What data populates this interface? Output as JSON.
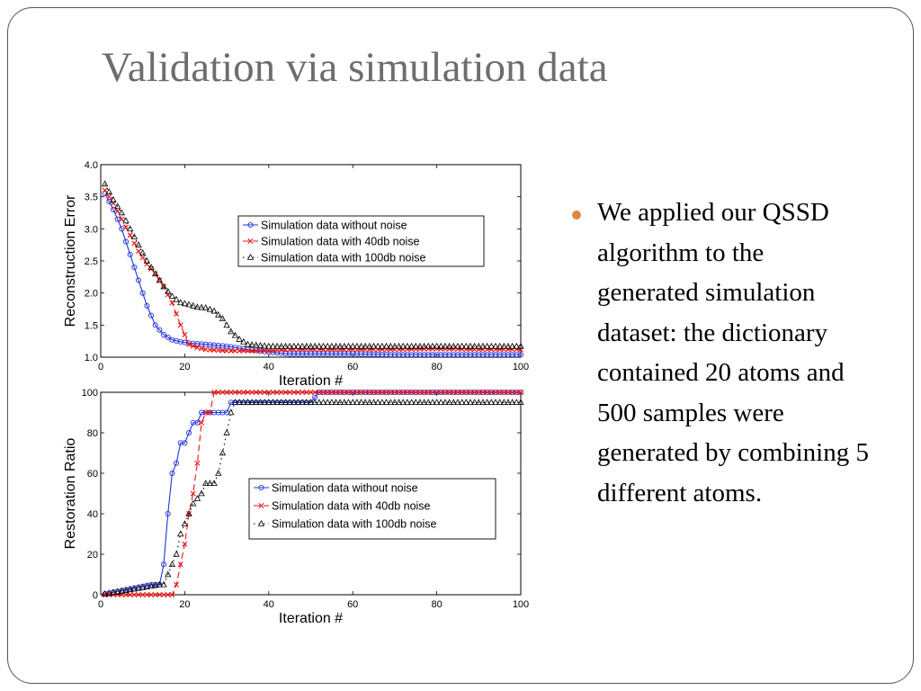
{
  "slide": {
    "title": "Validation via simulation data",
    "bullet": "We applied our QSSD algorithm to the generated simulation dataset: the dictionary contained 20 atoms and 500 samples were generated by combining 5 different atoms."
  },
  "colors": {
    "title": "#6d6d6d",
    "bullet": "#d88a44",
    "no_noise": "#2233dd",
    "noise40": "#ee1111",
    "noise100": "#000000"
  },
  "chart_data": [
    {
      "type": "line",
      "xlabel": "Iteration #",
      "ylabel": "Reconstruction Error",
      "xlim": [
        0,
        100
      ],
      "ylim": [
        1.0,
        4.0
      ],
      "xticks": [
        "0",
        "20",
        "40",
        "60",
        "80",
        "100"
      ],
      "yticks": [
        "1.0",
        "1.5",
        "2.0",
        "2.5",
        "3.0",
        "3.5",
        "4.0"
      ],
      "legend_position": "upper-right",
      "series": [
        {
          "name": "Simulation data without noise",
          "x": [
            1,
            3,
            5,
            7,
            9,
            11,
            13,
            15,
            17,
            19,
            21,
            25,
            30,
            35,
            40,
            45,
            50,
            60,
            70,
            80,
            90,
            100
          ],
          "y": [
            3.55,
            3.3,
            3.0,
            2.6,
            2.2,
            1.8,
            1.5,
            1.35,
            1.27,
            1.24,
            1.22,
            1.2,
            1.17,
            1.12,
            1.08,
            1.05,
            1.05,
            1.05,
            1.04,
            1.04,
            1.04,
            1.04
          ]
        },
        {
          "name": "Simulation data with 40db noise",
          "x": [
            1,
            3,
            5,
            7,
            9,
            11,
            13,
            15,
            17,
            19,
            21,
            23,
            25,
            30,
            35,
            40,
            45,
            50,
            60,
            70,
            80,
            90,
            100
          ],
          "y": [
            3.6,
            3.4,
            3.15,
            2.9,
            2.65,
            2.45,
            2.3,
            2.1,
            1.85,
            1.5,
            1.2,
            1.15,
            1.12,
            1.1,
            1.1,
            1.1,
            1.12,
            1.12,
            1.12,
            1.12,
            1.13,
            1.12,
            1.12
          ]
        },
        {
          "name": "Simulation data with 100db noise",
          "x": [
            1,
            3,
            5,
            7,
            9,
            11,
            13,
            15,
            17,
            19,
            21,
            23,
            25,
            27,
            29,
            31,
            33,
            35,
            40,
            50,
            60,
            70,
            80,
            90,
            100
          ],
          "y": [
            3.7,
            3.45,
            3.25,
            3.0,
            2.75,
            2.5,
            2.3,
            2.1,
            1.95,
            1.85,
            1.82,
            1.78,
            1.77,
            1.72,
            1.6,
            1.4,
            1.28,
            1.2,
            1.17,
            1.17,
            1.17,
            1.17,
            1.17,
            1.17,
            1.17
          ]
        }
      ]
    },
    {
      "type": "line",
      "xlabel": "Iteration #",
      "ylabel": "Restoration Ratio",
      "xlim": [
        0,
        100
      ],
      "ylim": [
        0,
        100
      ],
      "xticks": [
        "0",
        "20",
        "40",
        "60",
        "80",
        "100"
      ],
      "yticks": [
        "0",
        "20",
        "40",
        "60",
        "80",
        "100"
      ],
      "legend_position": "center-right",
      "series": [
        {
          "name": "Simulation data without noise",
          "x": [
            0,
            12,
            14,
            15,
            16,
            17,
            18,
            19,
            20,
            21,
            22,
            23,
            24,
            25,
            30,
            31,
            33,
            35,
            40,
            50,
            52,
            60,
            80,
            100
          ],
          "y": [
            0,
            5,
            5,
            15,
            40,
            60,
            65,
            75,
            75,
            80,
            85,
            85,
            90,
            90,
            90,
            95,
            95,
            95,
            95,
            95,
            100,
            100,
            100,
            100
          ]
        },
        {
          "name": "Simulation data with 40db noise",
          "x": [
            0,
            17,
            18,
            19,
            20,
            21,
            22,
            23,
            24,
            25,
            26,
            27,
            28,
            40,
            60,
            80,
            100
          ],
          "y": [
            0,
            0,
            5,
            15,
            25,
            40,
            50,
            65,
            85,
            90,
            90,
            100,
            100,
            100,
            100,
            100,
            100
          ]
        },
        {
          "name": "Simulation data with 100db noise",
          "x": [
            0,
            14,
            15,
            16,
            17,
            18,
            19,
            20,
            21,
            22,
            24,
            25,
            26,
            27,
            28,
            29,
            30,
            31,
            32,
            33,
            35,
            40,
            50,
            60,
            68,
            75,
            80,
            85,
            90,
            95,
            100
          ],
          "y": [
            0,
            5,
            5,
            10,
            15,
            20,
            30,
            35,
            40,
            45,
            50,
            55,
            55,
            55,
            60,
            70,
            80,
            90,
            95,
            95,
            95,
            95,
            95,
            95,
            95,
            95,
            95,
            95,
            95,
            95,
            95
          ]
        }
      ]
    }
  ]
}
